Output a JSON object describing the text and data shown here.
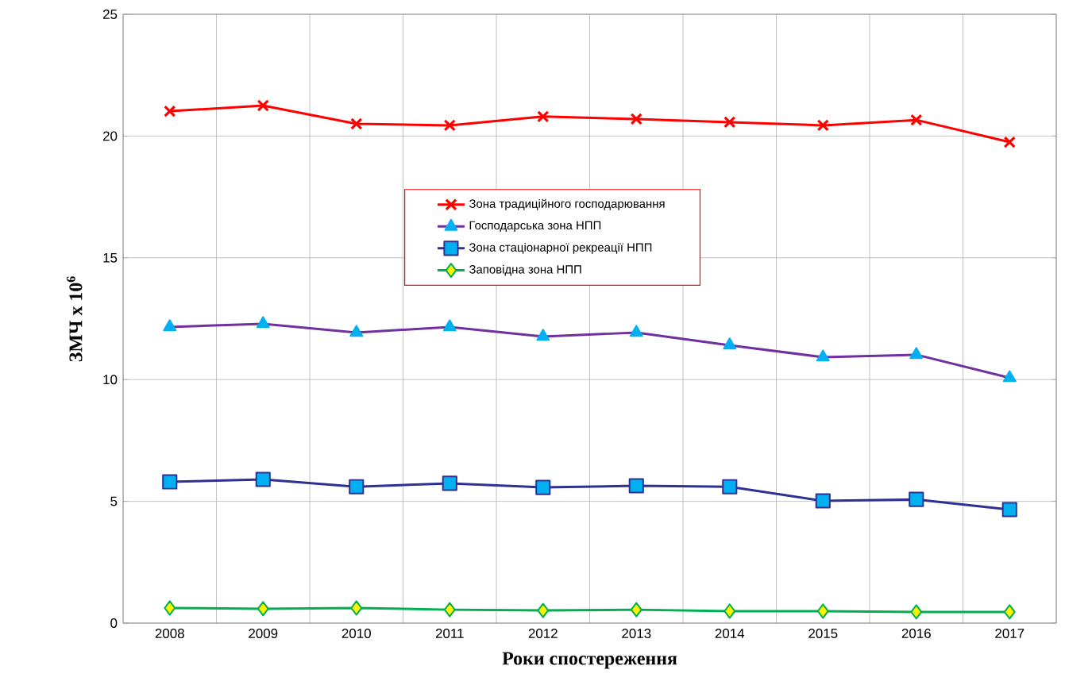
{
  "chart_data": {
    "type": "line",
    "xlabel": "Роки спостереження",
    "ylabel": "ЗМЧ x 10$^{6}$",
    "categories": [
      "2008",
      "2009",
      "2010",
      "2011",
      "2012",
      "2013",
      "2014",
      "2015",
      "2016",
      "2017"
    ],
    "series": [
      {
        "name": "Зона традиційного господарювання",
        "color": "#ff0000",
        "marker": "cross",
        "values": [
          21.02,
          21.25,
          20.5,
          20.44,
          20.8,
          20.7,
          20.57,
          20.44,
          20.66,
          19.75
        ]
      },
      {
        "name": "Господарська зона НПП",
        "color": "#7030a0",
        "marker": "triangle",
        "values": [
          12.16,
          12.29,
          11.93,
          12.16,
          11.77,
          11.93,
          11.41,
          10.92,
          11.02,
          10.07
        ]
      },
      {
        "name": "Зона стаціонарної рекреації НПП",
        "color": "#2e3192",
        "marker": "square",
        "values": [
          5.8,
          5.9,
          5.6,
          5.74,
          5.57,
          5.64,
          5.6,
          5.02,
          5.08,
          4.66
        ]
      },
      {
        "name": "Заповідна зона НПП",
        "color": "#00b050",
        "marker": "diamond",
        "values": [
          0.62,
          0.59,
          0.62,
          0.55,
          0.52,
          0.55,
          0.49,
          0.49,
          0.46,
          0.46
        ]
      }
    ],
    "ylim": [
      0,
      25
    ],
    "yticks": [
      0,
      5,
      10,
      15,
      20,
      25
    ],
    "grid": true,
    "legend": "top"
  }
}
